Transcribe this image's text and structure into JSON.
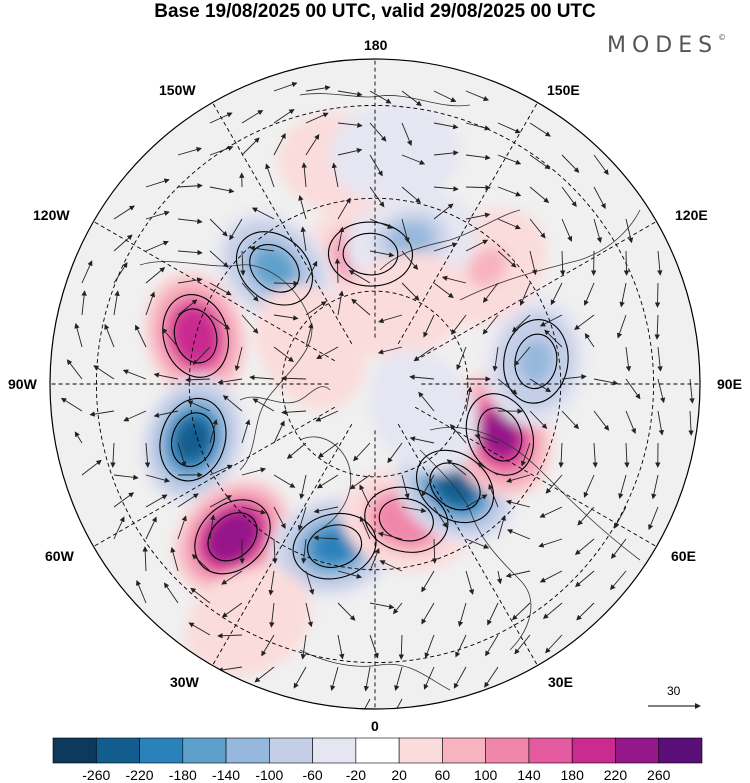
{
  "title": "Base 19/08/2025 00 UTC, valid 29/08/2025 00 UTC",
  "logo": "MODES",
  "logo_mark": "©",
  "longitude_labels": {
    "lon_0": "0",
    "lon_30e": "30E",
    "lon_60e": "60E",
    "lon_90e": "90E",
    "lon_120e": "120E",
    "lon_150e": "150E",
    "lon_180": "180",
    "lon_150w": "150W",
    "lon_120w": "120W",
    "lon_90w": "90W",
    "lon_60w": "60W",
    "lon_30w": "30W"
  },
  "reference_vector": "30",
  "colorbar": {
    "ticks": [
      "-260",
      "-220",
      "-180",
      "-140",
      "-100",
      "-60",
      "-20",
      "20",
      "60",
      "100",
      "140",
      "180",
      "220",
      "260"
    ],
    "colors": [
      "#0d3a5c",
      "#125d8e",
      "#2a82bb",
      "#5ea0cc",
      "#95b8dc",
      "#c4cfe7",
      "#e6e6f2",
      "#ffffff",
      "#fbdcdc",
      "#f7b4c0",
      "#f087ab",
      "#e45ba0",
      "#c92b8f",
      "#95188a",
      "#5a0e78"
    ]
  },
  "anomaly_centers": [
    {
      "name": "pos-150w-north",
      "lon": -178,
      "lat": 62,
      "value": 140
    },
    {
      "name": "neg-120w",
      "lon": -139,
      "lat": 57,
      "value": -160
    },
    {
      "name": "pos-110w",
      "lon": -105,
      "lat": 50,
      "value": 220
    },
    {
      "name": "neg-75w",
      "lon": -73,
      "lat": 49,
      "value": -220
    },
    {
      "name": "pos-45w",
      "lon": -43,
      "lat": 45,
      "value": 260
    },
    {
      "name": "neg-15w",
      "lon": -14,
      "lat": 54,
      "value": -180
    },
    {
      "name": "pos-10e",
      "lon": 13,
      "lat": 60,
      "value": 140
    },
    {
      "name": "neg-35e",
      "lon": 38,
      "lat": 62,
      "value": -220
    },
    {
      "name": "pos-65e",
      "lon": 68,
      "lat": 61,
      "value": 240
    },
    {
      "name": "neg-100e",
      "lon": 98,
      "lat": 55,
      "value": -120
    },
    {
      "name": "pos-130e",
      "lon": 136,
      "lat": 55,
      "value": 80
    },
    {
      "name": "neg-160e",
      "lon": 166,
      "lat": 58,
      "value": -100
    },
    {
      "name": "pos-175w-low",
      "lon": -172,
      "lat": 42,
      "value": 60
    },
    {
      "name": "neg-180-low",
      "lon": 175,
      "lat": 40,
      "value": -40
    },
    {
      "name": "pos-25w-low",
      "lon": -28,
      "lat": 32,
      "value": 60
    },
    {
      "name": "pos-155e-high",
      "lon": 160,
      "lat": 72,
      "value": 60
    },
    {
      "name": "pos-120w-high",
      "lon": -120,
      "lat": 74,
      "value": 40
    },
    {
      "name": "neg-60e-high",
      "lon": 60,
      "lat": 78,
      "value": -40
    }
  ]
}
